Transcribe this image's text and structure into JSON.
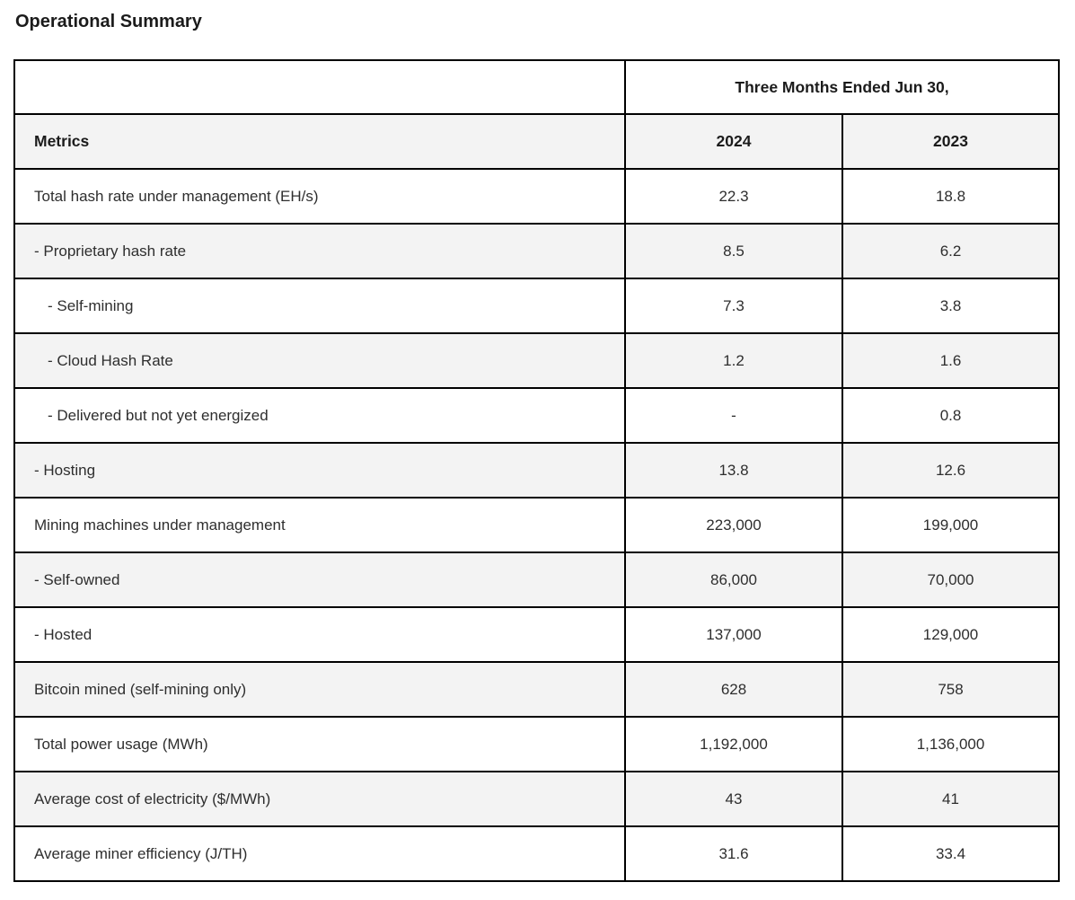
{
  "page": {
    "title": "Operational Summary"
  },
  "table": {
    "period_header": "Three Months Ended Jun 30,",
    "columns": [
      "Metrics",
      "2024",
      "2023"
    ],
    "rows": [
      {
        "metric": "Total hash rate under management (EH/s)",
        "v2024": "22.3",
        "v2023": "18.8",
        "level": 0
      },
      {
        "metric": "- Proprietary hash rate",
        "v2024": "8.5",
        "v2023": "6.2",
        "level": 1
      },
      {
        "metric": "- Self-mining",
        "v2024": "7.3",
        "v2023": "3.8",
        "level": 2
      },
      {
        "metric": "- Cloud Hash Rate",
        "v2024": "1.2",
        "v2023": "1.6",
        "level": 2
      },
      {
        "metric": "- Delivered but not yet energized",
        "v2024": "-",
        "v2023": "0.8",
        "level": 2
      },
      {
        "metric": "- Hosting",
        "v2024": "13.8",
        "v2023": "12.6",
        "level": 1
      },
      {
        "metric": "Mining machines under management",
        "v2024": "223,000",
        "v2023": "199,000",
        "level": 0
      },
      {
        "metric": "- Self-owned",
        "v2024": "86,000",
        "v2023": "70,000",
        "level": 1
      },
      {
        "metric": "- Hosted",
        "v2024": "137,000",
        "v2023": "129,000",
        "level": 1
      },
      {
        "metric": "Bitcoin mined (self-mining only)",
        "v2024": "628",
        "v2023": "758",
        "level": 0
      },
      {
        "metric": "Total power usage (MWh)",
        "v2024": "1,192,000",
        "v2023": "1,136,000",
        "level": 0
      },
      {
        "metric": "Average cost of electricity ($/MWh)",
        "v2024": "43",
        "v2023": "41",
        "level": 0
      },
      {
        "metric": "Average miner efficiency (J/TH)",
        "v2024": "31.6",
        "v2023": "33.4",
        "level": 0
      }
    ]
  },
  "colors": {
    "border": "#000000",
    "row_alt": "#f3f3f3",
    "header_text": "#1b1b1b",
    "body_text": "#2e2e2e",
    "background": "#ffffff"
  }
}
